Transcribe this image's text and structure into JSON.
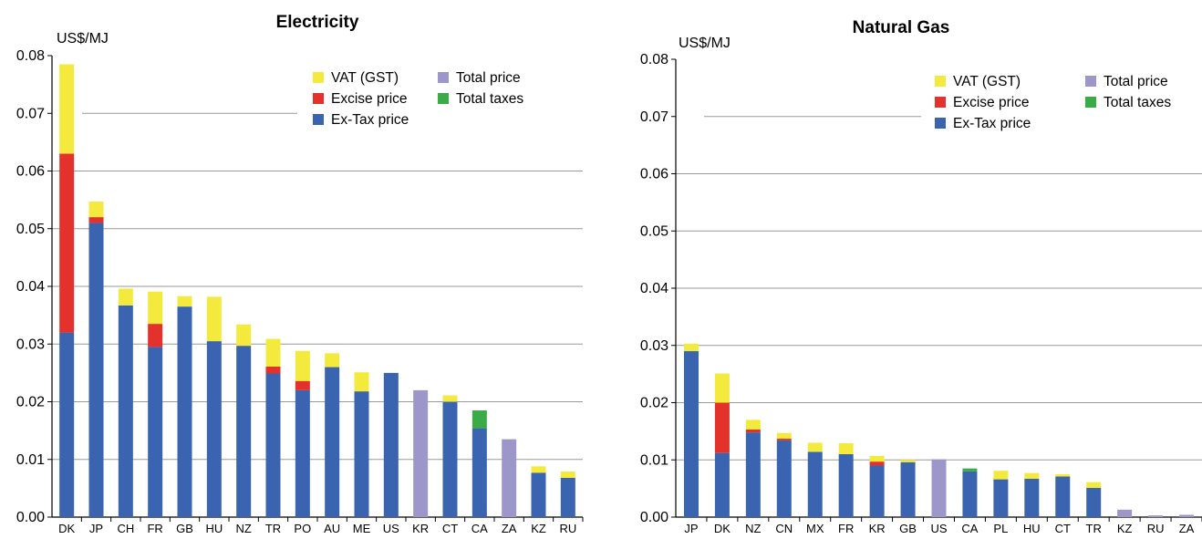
{
  "colors": {
    "vat": "#f4ea3e",
    "excise": "#e3312b",
    "extax": "#3a64b0",
    "total_price": "#9d97c9",
    "total_taxes": "#3bab48",
    "grid": "#9a9a9a",
    "axis": "#000000"
  },
  "chart_data": [
    {
      "type": "bar",
      "stacked": true,
      "title": "Electricity",
      "ylabel": "US$/MJ",
      "xlabel": "",
      "ylim": [
        0,
        0.08
      ],
      "yticks": [
        "0.00",
        "0.01",
        "0.02",
        "0.03",
        "0.04",
        "0.05",
        "0.06",
        "0.07",
        "0.08"
      ],
      "grid": true,
      "legend_position": "top-right",
      "legend": [
        {
          "key": "vat",
          "label": "VAT (GST)"
        },
        {
          "key": "excise",
          "label": "Excise price"
        },
        {
          "key": "extax",
          "label": "Ex-Tax price"
        },
        {
          "key": "total_price",
          "label": "Total price"
        },
        {
          "key": "total_taxes",
          "label": "Total taxes"
        }
      ],
      "categories": [
        "DK",
        "JP",
        "CH",
        "FR",
        "GB",
        "HU",
        "NZ",
        "TR",
        "PO",
        "AU",
        "ME",
        "US",
        "KR",
        "CT",
        "CA",
        "ZA",
        "KZ",
        "RU"
      ],
      "series": [
        {
          "key": "extax",
          "values": [
            0.032,
            0.051,
            0.0367,
            0.0295,
            0.0365,
            0.0305,
            0.0297,
            0.0249,
            0.022,
            0.026,
            0.0218,
            0.025,
            0,
            0.02,
            0.0154,
            0,
            0.0077,
            0.0068
          ]
        },
        {
          "key": "excise",
          "values": [
            0.031,
            0.001,
            0,
            0.004,
            0,
            0,
            0,
            0.0012,
            0.0016,
            0,
            0,
            0,
            0,
            0,
            0,
            0,
            0,
            0
          ]
        },
        {
          "key": "vat",
          "values": [
            0.0155,
            0.0027,
            0.0029,
            0.0056,
            0.0018,
            0.0077,
            0.0037,
            0.0048,
            0.0052,
            0.0024,
            0.0033,
            0,
            0,
            0.0011,
            0,
            0,
            0.0011,
            0.0011
          ]
        },
        {
          "key": "total_taxes",
          "values": [
            0,
            0,
            0,
            0,
            0,
            0,
            0,
            0,
            0,
            0,
            0,
            0,
            0,
            0,
            0.0031,
            0,
            0,
            0
          ]
        },
        {
          "key": "total_price",
          "values": [
            0,
            0,
            0,
            0,
            0,
            0,
            0,
            0,
            0,
            0,
            0,
            0,
            0.022,
            0,
            0,
            0.0135,
            0,
            0
          ]
        }
      ]
    },
    {
      "type": "bar",
      "stacked": true,
      "title": "Natural Gas",
      "ylabel": "US$/MJ",
      "xlabel": "",
      "ylim": [
        0,
        0.08
      ],
      "yticks": [
        "0.00",
        "0.01",
        "0.02",
        "0.03",
        "0.04",
        "0.05",
        "0.06",
        "0.07",
        "0.08"
      ],
      "grid": true,
      "legend_position": "top-right",
      "legend": [
        {
          "key": "vat",
          "label": "VAT (GST)"
        },
        {
          "key": "excise",
          "label": "Excise price"
        },
        {
          "key": "extax",
          "label": "Ex-Tax price"
        },
        {
          "key": "total_price",
          "label": "Total price"
        },
        {
          "key": "total_taxes",
          "label": "Total taxes"
        }
      ],
      "categories": [
        "JP",
        "DK",
        "NZ",
        "CN",
        "MX",
        "FR",
        "KR",
        "GB",
        "US",
        "CA",
        "PL",
        "HU",
        "CT",
        "TR",
        "KZ",
        "RU",
        "ZA"
      ],
      "series": [
        {
          "key": "extax",
          "values": [
            0.029,
            0.0112,
            0.0148,
            0.0134,
            0.0114,
            0.011,
            0.009,
            0.0096,
            0,
            0.008,
            0.0066,
            0.0067,
            0.0071,
            0.0051,
            0,
            0,
            0
          ]
        },
        {
          "key": "excise",
          "values": [
            0,
            0.0088,
            0.0005,
            0.0003,
            0,
            0,
            0.0007,
            0,
            0,
            0,
            0,
            0,
            0,
            0,
            0,
            0,
            0
          ]
        },
        {
          "key": "vat",
          "values": [
            0.0013,
            0.0051,
            0.0017,
            0.001,
            0.0016,
            0.0019,
            0.001,
            0.0004,
            0,
            0,
            0.0015,
            0.001,
            0.0004,
            0.001,
            0,
            0,
            0
          ]
        },
        {
          "key": "total_taxes",
          "values": [
            0,
            0,
            0,
            0,
            0,
            0,
            0,
            0,
            0,
            0.0005,
            0,
            0,
            0,
            0,
            0,
            0,
            0
          ]
        },
        {
          "key": "total_price",
          "values": [
            0,
            0,
            0,
            0,
            0,
            0,
            0,
            0,
            0.0101,
            0,
            0,
            0,
            0,
            0,
            0.0013,
            0.0003,
            0.0004
          ]
        }
      ]
    }
  ]
}
